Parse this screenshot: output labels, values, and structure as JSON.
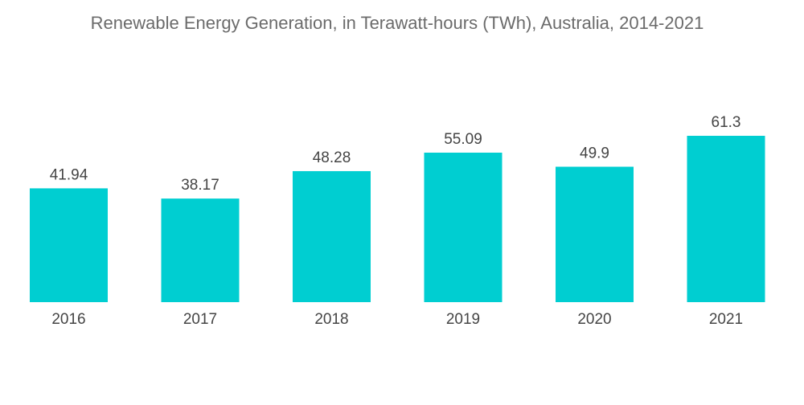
{
  "chart_data": {
    "type": "bar",
    "title": "Renewable Energy Generation, in Terawatt-hours (TWh), Australia, 2014-2021",
    "categories": [
      "2016",
      "2017",
      "2018",
      "2019",
      "2020",
      "2021"
    ],
    "values": [
      41.94,
      38.17,
      48.28,
      55.09,
      49.9,
      61.3
    ],
    "value_labels": [
      "41.94",
      "38.17",
      "48.28",
      "55.09",
      "49.9",
      "61.3"
    ],
    "xlabel": "",
    "ylabel": "",
    "ylim": [
      0,
      61.3
    ],
    "grid": false,
    "legend": "none",
    "bar_color": "#00CED1"
  }
}
